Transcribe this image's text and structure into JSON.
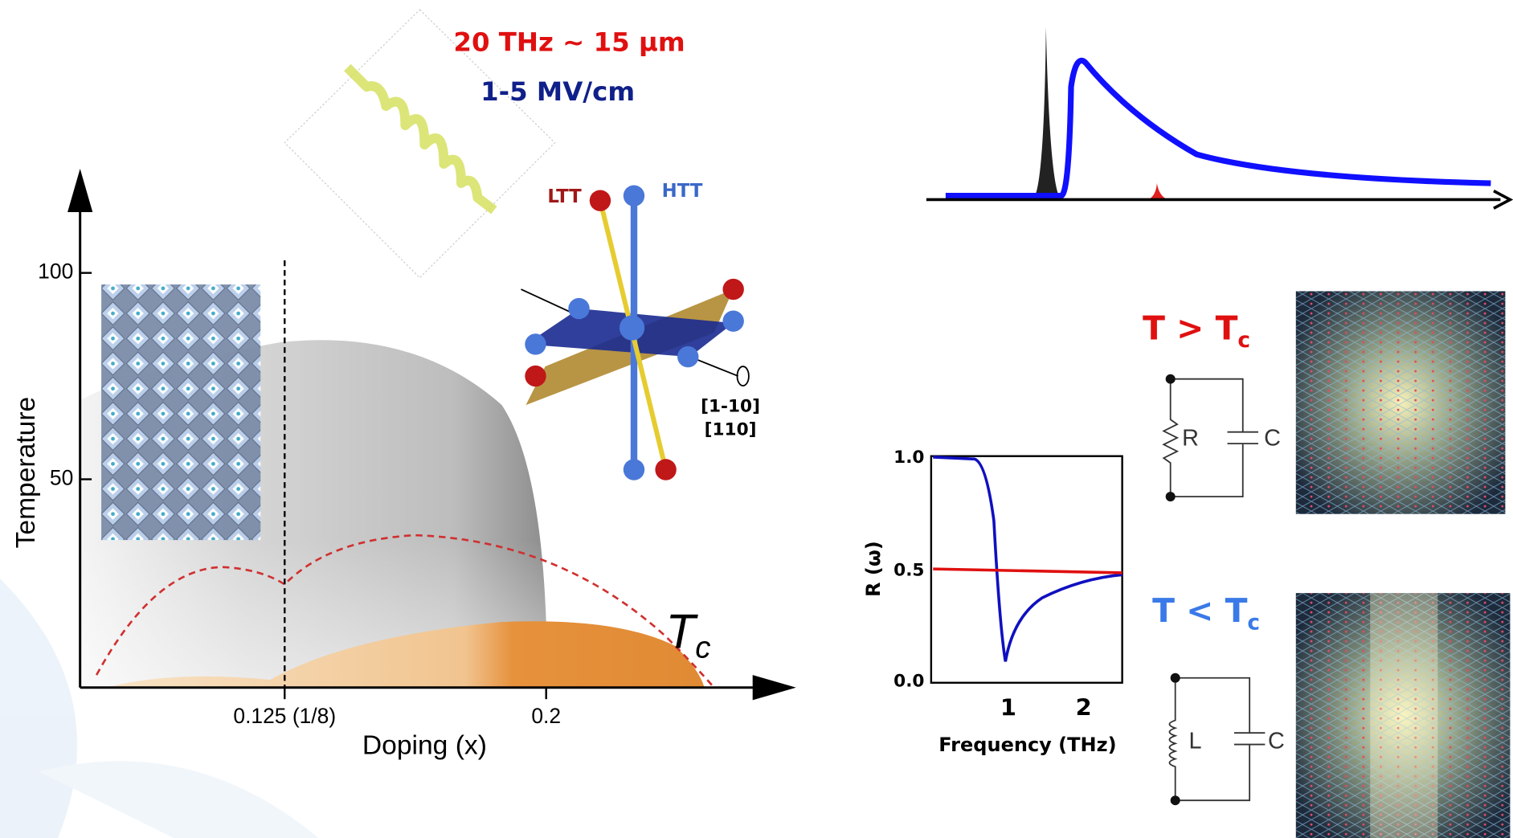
{
  "pulse": {
    "frequency": "20 THz ~ 15 µm",
    "field": "1-5 MV/cm"
  },
  "phase_diagram": {
    "y_axis_label": "Temperature",
    "x_axis_label": "Doping (x)",
    "y_ticks": [
      "100",
      "50"
    ],
    "x_ticks": [
      "0.125 (1/8)",
      "0.2"
    ],
    "tc_label": "T",
    "tc_subscript": "c"
  },
  "structure": {
    "ltt": "LTT",
    "htt": "HTT",
    "axis_1": "[1-10]",
    "axis_2": "[110]"
  },
  "reflectivity": {
    "y_axis_label": "R (ω)",
    "x_axis_label": "Frequency (THz)",
    "y_ticks": [
      "1.0",
      "0.5",
      "0.0"
    ],
    "x_ticks": [
      "1",
      "2"
    ]
  },
  "states": [
    {
      "condition": "T > T",
      "subscript": "c",
      "element_1": "R",
      "element_2": "C"
    },
    {
      "condition": "T < T",
      "subscript": "c",
      "element_1": "L",
      "element_2": "C"
    }
  ]
}
